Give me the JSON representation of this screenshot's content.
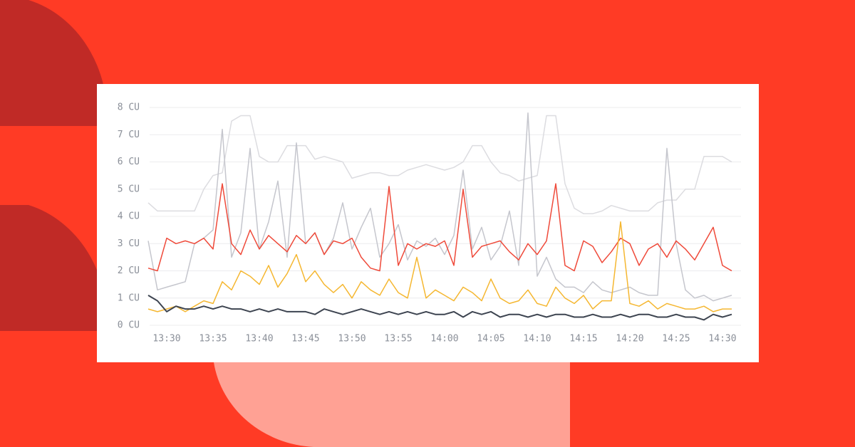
{
  "chart_data": {
    "type": "line",
    "x": [
      808,
      809,
      810,
      811,
      812,
      813,
      814,
      815,
      816,
      817,
      818,
      819,
      820,
      821,
      822,
      823,
      824,
      825,
      826,
      827,
      828,
      829,
      830,
      831,
      832,
      833,
      834,
      835,
      836,
      837,
      838,
      839,
      840,
      841,
      842,
      843,
      844,
      845,
      846,
      847,
      848,
      849,
      850,
      851,
      852,
      853,
      854,
      855,
      856,
      857,
      858,
      859,
      860,
      861,
      862,
      863,
      864,
      865,
      866,
      867,
      868,
      869,
      870,
      871
    ],
    "xlim": [
      808,
      872
    ],
    "xticks": [
      {
        "value": 810,
        "label": "13:30"
      },
      {
        "value": 815,
        "label": "13:35"
      },
      {
        "value": 820,
        "label": "13:40"
      },
      {
        "value": 825,
        "label": "13:45"
      },
      {
        "value": 830,
        "label": "13:50"
      },
      {
        "value": 835,
        "label": "13:55"
      },
      {
        "value": 840,
        "label": "14:00"
      },
      {
        "value": 845,
        "label": "14:05"
      },
      {
        "value": 850,
        "label": "14:10"
      },
      {
        "value": 855,
        "label": "14:15"
      },
      {
        "value": 860,
        "label": "14:20"
      },
      {
        "value": 865,
        "label": "14:25"
      },
      {
        "value": 870,
        "label": "14:30"
      }
    ],
    "ylim": [
      0,
      8
    ],
    "yticks": [
      {
        "value": 0,
        "label": "0 CU"
      },
      {
        "value": 1,
        "label": "1 CU"
      },
      {
        "value": 2,
        "label": "2 CU"
      },
      {
        "value": 3,
        "label": "3 CU"
      },
      {
        "value": 4,
        "label": "4 CU"
      },
      {
        "value": 5,
        "label": "5 CU"
      },
      {
        "value": 6,
        "label": "6 CU"
      },
      {
        "value": 7,
        "label": "7 CU"
      },
      {
        "value": 8,
        "label": "8 CU"
      }
    ],
    "grid": true,
    "series": [
      {
        "color": "#dcdce0",
        "values": [
          4.5,
          4.2,
          4.2,
          4.2,
          4.2,
          4.2,
          5.0,
          5.5,
          5.6,
          7.5,
          7.7,
          7.7,
          6.2,
          6.0,
          6.0,
          6.6,
          6.6,
          6.6,
          6.1,
          6.2,
          6.1,
          6.0,
          5.4,
          5.5,
          5.6,
          5.6,
          5.5,
          5.5,
          5.7,
          5.8,
          5.9,
          5.8,
          5.7,
          5.8,
          6.0,
          6.6,
          6.6,
          6.0,
          5.6,
          5.5,
          5.3,
          5.4,
          5.5,
          7.7,
          7.7,
          5.2,
          4.3,
          4.1,
          4.1,
          4.2,
          4.4,
          4.3,
          4.2,
          4.2,
          4.2,
          4.5,
          4.6,
          4.6,
          5.0,
          5.0,
          6.2,
          6.2,
          6.2,
          6.0
        ]
      },
      {
        "color": "#c5c6cd",
        "values": [
          3.1,
          1.3,
          1.4,
          1.5,
          1.6,
          3.0,
          3.2,
          3.5,
          7.2,
          2.5,
          3.4,
          6.5,
          2.8,
          3.8,
          5.3,
          2.5,
          6.7,
          3.0,
          3.4,
          2.6,
          3.2,
          4.5,
          2.8,
          3.6,
          4.3,
          2.5,
          3.0,
          3.7,
          2.4,
          3.1,
          2.9,
          3.2,
          2.6,
          3.3,
          5.7,
          2.8,
          3.6,
          2.4,
          2.9,
          4.2,
          2.2,
          7.8,
          1.8,
          2.5,
          1.7,
          1.4,
          1.4,
          1.2,
          1.6,
          1.3,
          1.2,
          1.3,
          1.4,
          1.2,
          1.1,
          1.1,
          6.5,
          3.0,
          1.3,
          1.0,
          1.1,
          0.9,
          1.0,
          1.1
        ]
      },
      {
        "color": "#ef4a3a",
        "values": [
          2.1,
          2.0,
          3.2,
          3.0,
          3.1,
          3.0,
          3.2,
          2.8,
          5.2,
          3.0,
          2.6,
          3.5,
          2.8,
          3.3,
          3.0,
          2.7,
          3.3,
          3.0,
          3.4,
          2.6,
          3.1,
          3.0,
          3.2,
          2.5,
          2.1,
          2.0,
          5.1,
          2.2,
          3.0,
          2.8,
          3.0,
          2.9,
          3.1,
          2.2,
          5.0,
          2.5,
          2.9,
          3.0,
          3.1,
          2.7,
          2.4,
          3.0,
          2.6,
          3.1,
          5.2,
          2.2,
          2.0,
          3.1,
          2.9,
          2.3,
          2.7,
          3.2,
          3.0,
          2.2,
          2.8,
          3.0,
          2.5,
          3.1,
          2.8,
          2.4,
          3.0,
          3.6,
          2.2,
          2.0
        ]
      },
      {
        "color": "#f5b731",
        "values": [
          0.6,
          0.5,
          0.6,
          0.7,
          0.5,
          0.7,
          0.9,
          0.8,
          1.6,
          1.3,
          2.0,
          1.8,
          1.5,
          2.2,
          1.4,
          1.9,
          2.6,
          1.6,
          2.0,
          1.5,
          1.2,
          1.5,
          1.0,
          1.6,
          1.3,
          1.1,
          1.7,
          1.2,
          1.0,
          2.5,
          1.0,
          1.3,
          1.1,
          0.9,
          1.4,
          1.2,
          0.9,
          1.7,
          1.0,
          0.8,
          0.9,
          1.3,
          0.8,
          0.7,
          1.4,
          1.0,
          0.8,
          1.1,
          0.6,
          0.9,
          0.9,
          3.8,
          0.8,
          0.7,
          0.9,
          0.6,
          0.8,
          0.7,
          0.6,
          0.6,
          0.7,
          0.5,
          0.6,
          0.6
        ]
      },
      {
        "color": "#3d4450",
        "values": [
          1.1,
          0.9,
          0.5,
          0.7,
          0.6,
          0.6,
          0.7,
          0.6,
          0.7,
          0.6,
          0.6,
          0.5,
          0.6,
          0.5,
          0.6,
          0.5,
          0.5,
          0.5,
          0.4,
          0.6,
          0.5,
          0.4,
          0.5,
          0.6,
          0.5,
          0.4,
          0.5,
          0.4,
          0.5,
          0.4,
          0.5,
          0.4,
          0.4,
          0.5,
          0.3,
          0.5,
          0.4,
          0.5,
          0.3,
          0.4,
          0.4,
          0.3,
          0.4,
          0.3,
          0.4,
          0.4,
          0.3,
          0.3,
          0.4,
          0.3,
          0.3,
          0.4,
          0.3,
          0.4,
          0.4,
          0.3,
          0.3,
          0.4,
          0.3,
          0.3,
          0.2,
          0.4,
          0.3,
          0.4
        ]
      }
    ]
  }
}
